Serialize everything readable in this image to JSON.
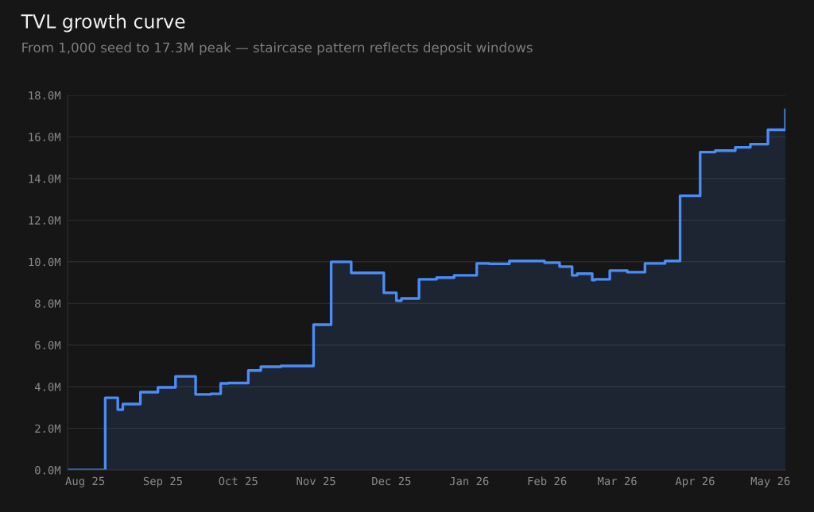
{
  "chart_data": {
    "type": "step",
    "title": "TVL growth curve",
    "subtitle": "From 1,000 seed to 17.3M peak — staircase pattern reflects deposit windows",
    "x": [
      "2025-07-25",
      "2025-08-09",
      "2025-08-14",
      "2025-08-16",
      "2025-08-23",
      "2025-08-30",
      "2025-09-06",
      "2025-09-14",
      "2025-09-20",
      "2025-09-24",
      "2025-09-27",
      "2025-10-05",
      "2025-10-10",
      "2025-10-18",
      "2025-10-31",
      "2025-11-07",
      "2025-11-15",
      "2025-11-28",
      "2025-12-03",
      "2025-12-05",
      "2025-12-12",
      "2025-12-19",
      "2025-12-26",
      "2026-01-04",
      "2026-01-09",
      "2026-01-17",
      "2026-01-31",
      "2026-02-06",
      "2026-02-11",
      "2026-02-13",
      "2026-02-19",
      "2026-02-20",
      "2026-02-26",
      "2026-03-05",
      "2026-03-12",
      "2026-03-20",
      "2026-03-26",
      "2026-04-03",
      "2026-04-09",
      "2026-04-17",
      "2026-04-23",
      "2026-04-30",
      "2026-05-07"
    ],
    "series": [
      {
        "color": "#4a8df8",
        "values": [
          0,
          3.47,
          2.9,
          3.17,
          3.74,
          3.97,
          4.5,
          3.63,
          3.66,
          4.16,
          4.18,
          4.78,
          4.96,
          5.0,
          6.98,
          10.0,
          9.47,
          8.51,
          8.13,
          8.24,
          9.16,
          9.24,
          9.35,
          9.92,
          9.9,
          10.04,
          9.96,
          9.77,
          9.35,
          9.43,
          9.12,
          9.16,
          9.58,
          9.5,
          9.92,
          10.04,
          13.17,
          15.27,
          15.34,
          15.5,
          15.65,
          16.34,
          17.3
        ]
      }
    ],
    "xlim": [
      "2025-07-25",
      "2026-05-07"
    ],
    "xticks": [
      {
        "value": "2025-08-01",
        "label": "Aug 25"
      },
      {
        "value": "2025-09-01",
        "label": "Sep 25"
      },
      {
        "value": "2025-10-01",
        "label": "Oct 25"
      },
      {
        "value": "2025-11-01",
        "label": "Nov 25"
      },
      {
        "value": "2025-12-01",
        "label": "Dec 25"
      },
      {
        "value": "2026-01-01",
        "label": "Jan 26"
      },
      {
        "value": "2026-02-01",
        "label": "Feb 26"
      },
      {
        "value": "2026-03-01",
        "label": "Mar 26"
      },
      {
        "value": "2026-04-01",
        "label": "Apr 26"
      },
      {
        "value": "2026-05-01",
        "label": "May 26"
      }
    ],
    "ylim": [
      0,
      18
    ],
    "yticks": [
      {
        "value": 0,
        "label": "0.0M"
      },
      {
        "value": 2,
        "label": "2.0M"
      },
      {
        "value": 4,
        "label": "4.0M"
      },
      {
        "value": 6,
        "label": "6.0M"
      },
      {
        "value": 8,
        "label": "8.0M"
      },
      {
        "value": 10,
        "label": "10.0M"
      },
      {
        "value": 12,
        "label": "12.0M"
      },
      {
        "value": 14,
        "label": "14.0M"
      },
      {
        "value": 16,
        "label": "16.0M"
      },
      {
        "value": 18,
        "label": "18.0M"
      }
    ],
    "grid": "y",
    "marker": "none",
    "line_style": "solid"
  }
}
